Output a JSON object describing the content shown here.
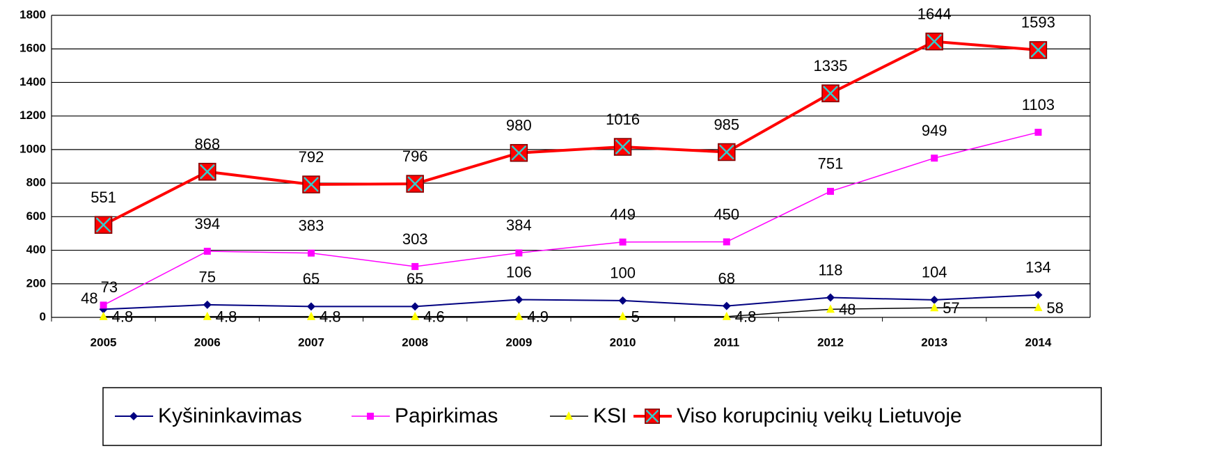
{
  "chart_data": {
    "type": "line",
    "categories": [
      "2005",
      "2006",
      "2007",
      "2008",
      "2009",
      "2010",
      "2011",
      "2012",
      "2013",
      "2014"
    ],
    "ylim": [
      0,
      1800
    ],
    "yticks": [
      0,
      200,
      400,
      600,
      800,
      1000,
      1200,
      1400,
      1600,
      1800
    ],
    "grid": true,
    "legend": "bottom",
    "series": [
      {
        "name": "Kyšininkavimas",
        "color": "#000080",
        "marker": "diamond",
        "marker_color": "#000080",
        "values": [
          48,
          75,
          65,
          65,
          106,
          100,
          68,
          118,
          104,
          134
        ]
      },
      {
        "name": "Papirkimas",
        "color": "#ff00ff",
        "marker": "square",
        "marker_color": "#ff00ff",
        "values": [
          73,
          394,
          383,
          303,
          384,
          449,
          450,
          751,
          949,
          1103
        ]
      },
      {
        "name": "KSI",
        "color": "#000000",
        "marker": "triangle",
        "marker_color": "#ffff00",
        "values": [
          4.8,
          4.8,
          4.8,
          4.6,
          4.9,
          5,
          4.8,
          48,
          57,
          58
        ]
      },
      {
        "name": "Viso korupcinių veikų Lietuvoje",
        "color": "#ff0000",
        "marker": "boxx",
        "marker_color": "#ff0000",
        "values": [
          551,
          868,
          792,
          796,
          980,
          1016,
          985,
          1335,
          1644,
          1593
        ]
      }
    ]
  }
}
